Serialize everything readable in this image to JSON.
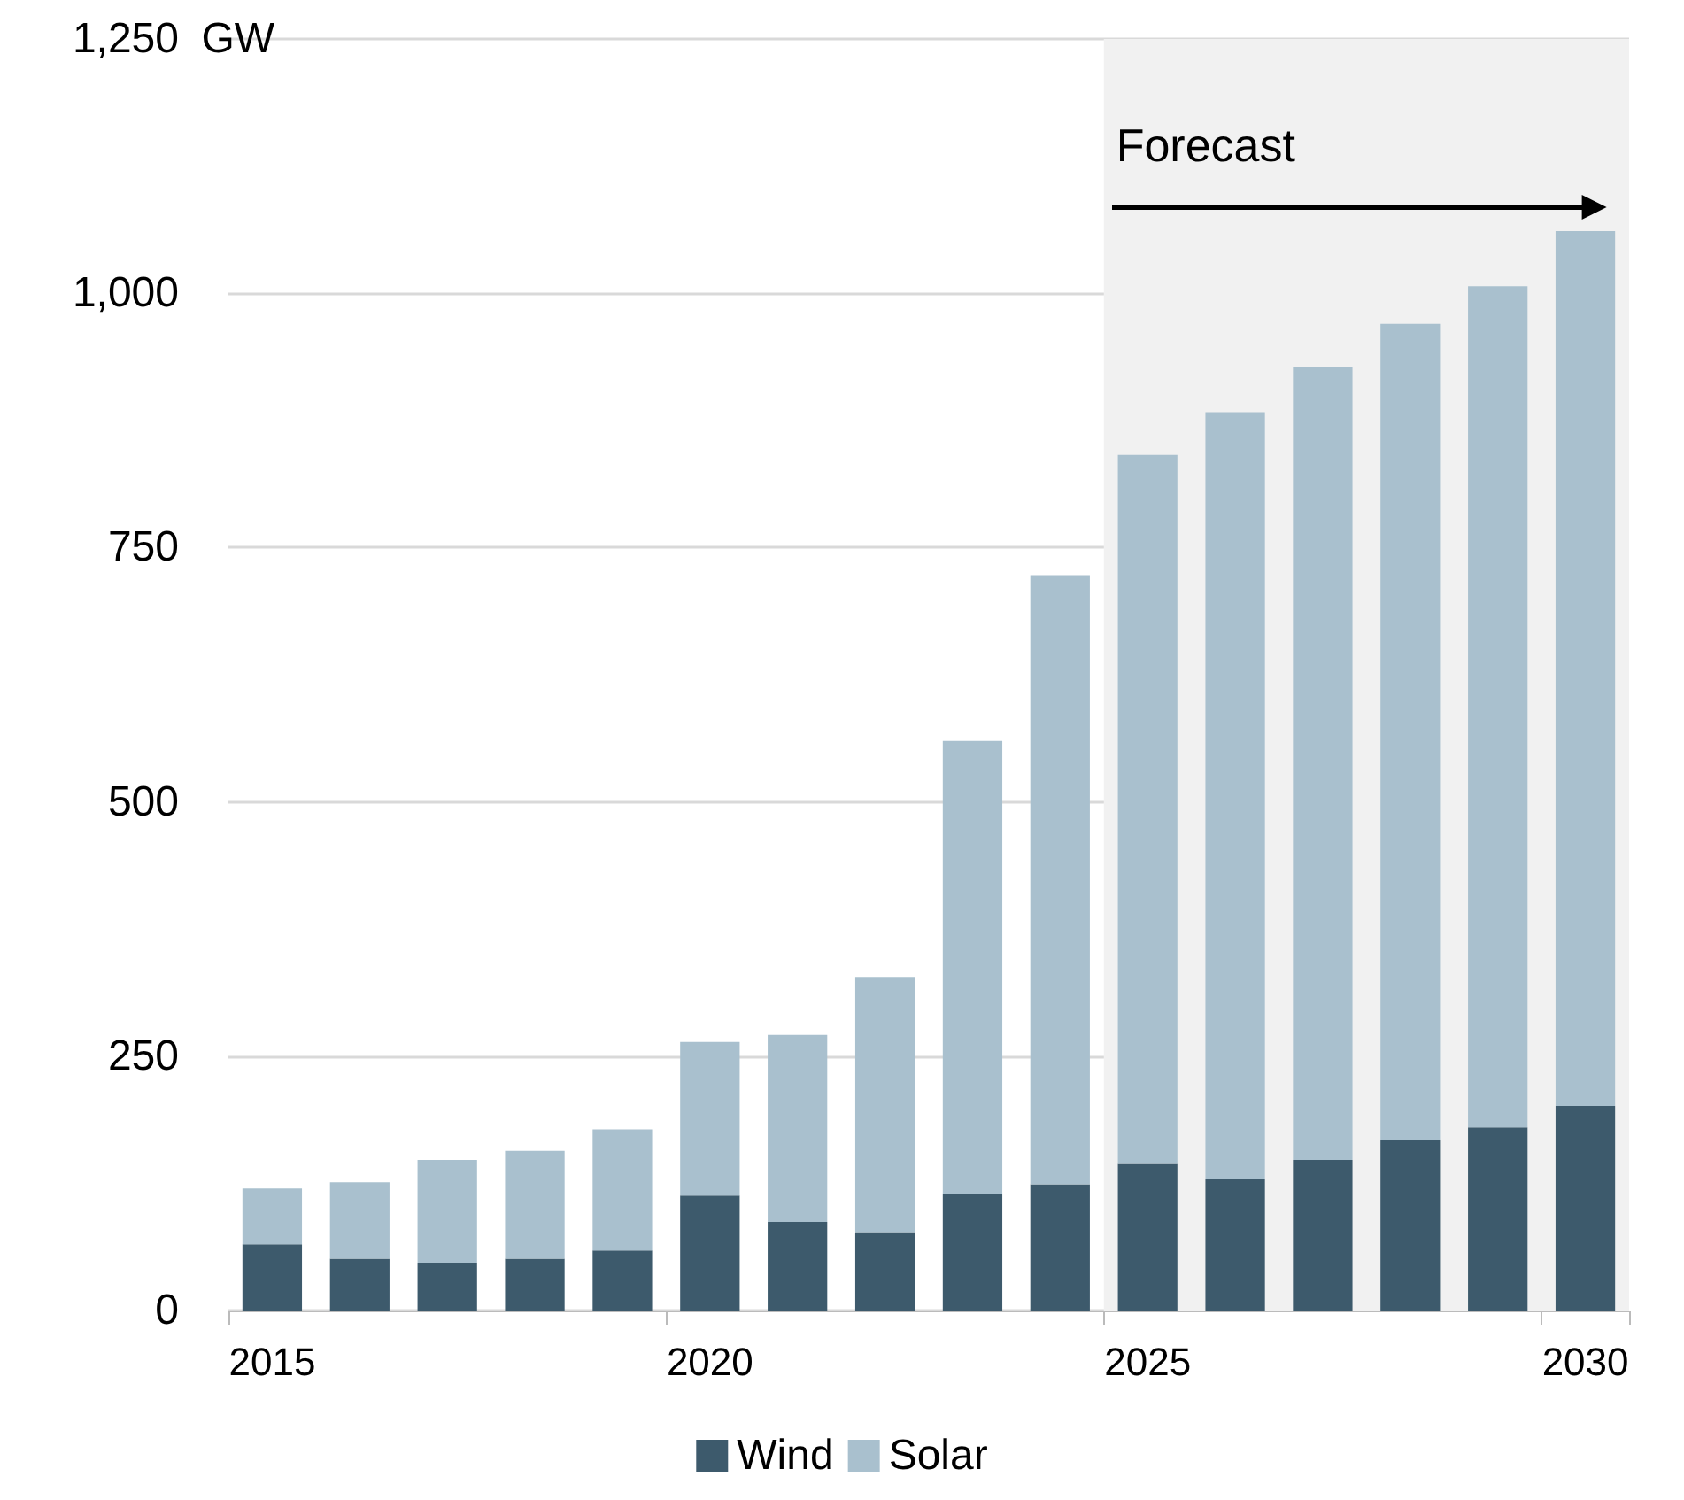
{
  "chart_data": {
    "type": "bar",
    "stacked": true,
    "ylabel": "GW",
    "categories": [
      "2015",
      null,
      null,
      null,
      null,
      "2020",
      null,
      null,
      null,
      null,
      "2025",
      null,
      null,
      null,
      null,
      "2030"
    ],
    "series": [
      {
        "name": "Wind",
        "color": "#3d5a6c",
        "values": [
          65,
          51,
          47,
          51,
          59,
          113,
          87,
          77,
          115,
          124,
          145,
          129,
          148,
          168,
          180,
          201
        ]
      },
      {
        "name": "Solar",
        "color": "#a9c0ce",
        "values": [
          55,
          75,
          101,
          106,
          119,
          151,
          184,
          251,
          445,
          599,
          696,
          754,
          780,
          802,
          827,
          860
        ]
      }
    ],
    "ylim": [
      0,
      1250
    ],
    "yticks": [
      0,
      250,
      500,
      750,
      {
        "value": 1000,
        "label": "1,000"
      },
      {
        "value": 1250,
        "label": "1,250"
      }
    ],
    "grid": "y",
    "legend": "bottom",
    "bands": [
      {
        "axis": "x",
        "from": "2025",
        "to": "2030",
        "label": "Forecast",
        "color": "#f1f1f1"
      }
    ]
  }
}
